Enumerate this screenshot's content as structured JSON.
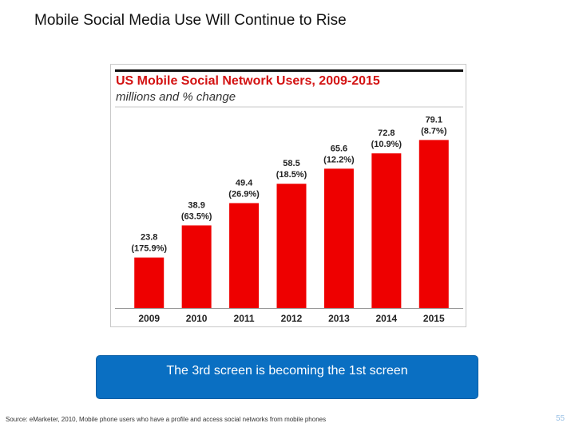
{
  "slide": {
    "title": "Mobile Social Media Use Will Continue to Rise",
    "callout": "The 3rd screen is becoming the 1st screen",
    "source": "Source: eMarketer, 2010, Mobile phone users who have a profile and access social networks from mobile phones",
    "page_number": "55"
  },
  "chart_data": {
    "type": "bar",
    "title": "US Mobile Social Network Users, 2009-2015",
    "subtitle": "millions and % change",
    "categories": [
      "2009",
      "2010",
      "2011",
      "2012",
      "2013",
      "2014",
      "2015"
    ],
    "values": [
      23.8,
      38.9,
      49.4,
      58.5,
      65.6,
      72.8,
      79.1
    ],
    "value_labels": [
      "23.8",
      "38.9",
      "49.4",
      "58.5",
      "65.6",
      "72.8",
      "79.1"
    ],
    "change_labels": [
      "(175.9%)",
      "(63.5%)",
      "(26.9%)",
      "(18.5%)",
      "(12.2%)",
      "(10.9%)",
      "(8.7%)"
    ],
    "xlabel": "",
    "ylabel": "",
    "ylim": [
      0,
      80
    ],
    "grid": false,
    "bar_color": "#ee0000"
  },
  "colors": {
    "accent": "#d31212",
    "callout_bg": "#0a6fc2"
  }
}
